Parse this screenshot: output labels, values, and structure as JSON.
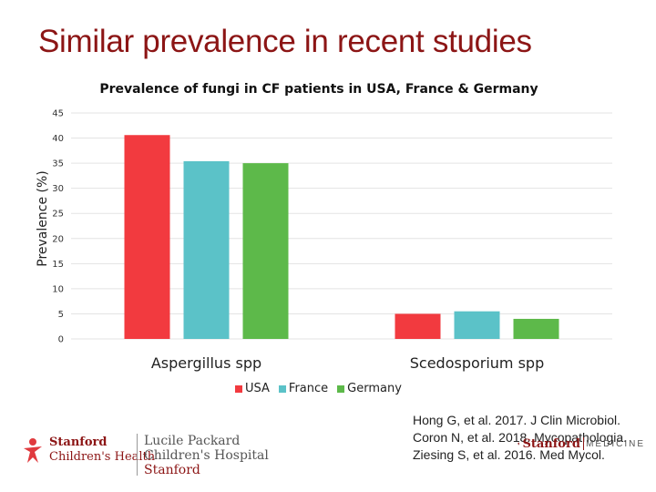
{
  "slide": {
    "title": "Similar prevalence in recent studies"
  },
  "chart_data": {
    "type": "bar",
    "title": "Prevalence of fungi in CF patients in USA, France & Germany",
    "xlabel": "",
    "ylabel": "Prevalence (%)",
    "ylim": [
      0,
      45
    ],
    "yticks": [
      0,
      5,
      10,
      15,
      20,
      25,
      30,
      35,
      40,
      45
    ],
    "grid": true,
    "legend_position": "bottom",
    "categories": [
      "Aspergillus spp",
      "Scedosporium spp"
    ],
    "series": [
      {
        "name": "USA",
        "color": "#f23a3f",
        "values": [
          40.6,
          5.0
        ]
      },
      {
        "name": "France",
        "color": "#5bc2c8",
        "values": [
          35.4,
          5.5
        ]
      },
      {
        "name": "Germany",
        "color": "#5db94a",
        "values": [
          35.0,
          4.0
        ]
      }
    ]
  },
  "references": [
    "Hong G, et al. 2017. J Clin Microbiol.",
    "Coron N, et al. 2018. Mycopathologia.",
    "Ziesing S, et al. 2016. Med Mycol."
  ],
  "logos": {
    "left": {
      "sch_line1": "Stanford",
      "sch_line2": "Children's Health",
      "lpch_line1": "Lucile Packard",
      "lpch_line2": "Children's Hospital",
      "lpch_line3": "Stanford",
      "brand_color": "#8c1515",
      "icon": "stanford-childrens-figure-icon"
    },
    "right": {
      "stanford": "Stanford",
      "medicine": "MEDICINE",
      "icon": "stanford-tree-icon"
    }
  }
}
